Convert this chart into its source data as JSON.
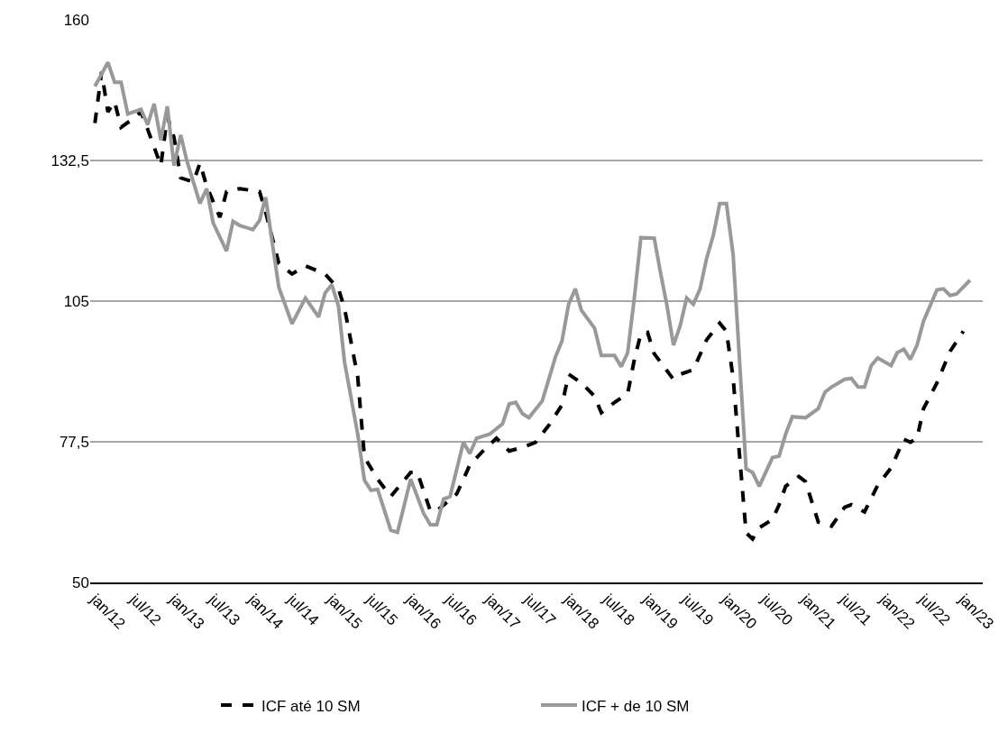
{
  "chart_data": {
    "type": "line",
    "xlim": [
      "2011-12-10",
      "2023-04-01"
    ],
    "ylim": [
      50,
      160
    ],
    "yticks": [
      50,
      {
        "value": 77.5,
        "label": "77,5"
      },
      105,
      {
        "value": 132.5,
        "label": "132,5"
      },
      160
    ],
    "xticks": [
      {
        "value": "2012-01-01",
        "label": "jan/12"
      },
      {
        "value": "2012-07-01",
        "label": "jul/12"
      },
      {
        "value": "2013-01-01",
        "label": "jan/13"
      },
      {
        "value": "2013-07-01",
        "label": "jul/13"
      },
      {
        "value": "2014-01-01",
        "label": "jan/14"
      },
      {
        "value": "2014-07-01",
        "label": "jul/14"
      },
      {
        "value": "2015-01-01",
        "label": "jan/15"
      },
      {
        "value": "2015-07-01",
        "label": "jul/15"
      },
      {
        "value": "2016-01-01",
        "label": "jan/16"
      },
      {
        "value": "2016-07-01",
        "label": "jul/16"
      },
      {
        "value": "2017-01-01",
        "label": "jan/17"
      },
      {
        "value": "2017-07-01",
        "label": "jul/17"
      },
      {
        "value": "2018-01-01",
        "label": "jan/18"
      },
      {
        "value": "2018-07-01",
        "label": "jul/18"
      },
      {
        "value": "2019-01-01",
        "label": "jan/19"
      },
      {
        "value": "2019-07-01",
        "label": "jul/19"
      },
      {
        "value": "2020-01-01",
        "label": "jan/20"
      },
      {
        "value": "2020-07-01",
        "label": "jul/20"
      },
      {
        "value": "2021-01-01",
        "label": "jan/21"
      },
      {
        "value": "2021-07-01",
        "label": "jul/21"
      },
      {
        "value": "2022-01-01",
        "label": "jan/22"
      },
      {
        "value": "2022-07-01",
        "label": "jul/22"
      },
      {
        "value": "2023-01-01",
        "label": "jan/23"
      }
    ],
    "grid": "y",
    "legend": "bottom",
    "marker": "none",
    "series": [
      {
        "name": "ICF até 10 SM",
        "color": "#000000",
        "line_style": "dashed",
        "x": [
          "2012-01",
          "2012-02",
          "2012-03",
          "2012-04",
          "2012-05",
          "2012-07",
          "2012-08",
          "2012-09",
          "2012-11",
          "2012-12",
          "2013-01",
          "2013-02",
          "2013-04",
          "2013-05",
          "2013-06",
          "2013-08",
          "2013-09",
          "2013-11",
          "2014-02",
          "2014-03",
          "2014-05",
          "2014-07",
          "2014-09",
          "2014-12",
          "2015-02",
          "2015-03",
          "2015-05",
          "2015-06",
          "2015-08",
          "2015-10",
          "2016-01",
          "2016-02",
          "2016-04",
          "2016-05",
          "2016-08",
          "2016-10",
          "2016-12",
          "2017-02",
          "2017-04",
          "2017-06",
          "2017-08",
          "2017-10",
          "2017-12",
          "2018-01",
          "2018-03",
          "2018-05",
          "2018-06",
          "2018-08",
          "2018-10",
          "2018-11",
          "2018-12",
          "2019-01",
          "2019-02",
          "2019-05",
          "2019-06",
          "2019-08",
          "2019-10",
          "2019-12",
          "2020-01",
          "2020-02",
          "2020-03",
          "2020-04",
          "2020-05",
          "2020-06",
          "2020-08",
          "2020-09",
          "2020-10",
          "2020-12",
          "2021-01",
          "2021-03",
          "2021-05",
          "2021-07",
          "2021-08",
          "2021-10",
          "2021-12",
          "2022-02",
          "2022-04",
          "2022-05",
          "2022-06",
          "2022-07",
          "2022-09",
          "2022-11",
          "2023-01"
        ],
        "values": [
          139.8,
          149.8,
          142.0,
          144.0,
          139.0,
          140.8,
          142.0,
          138.6,
          131.5,
          141.1,
          137.0,
          129.1,
          128.3,
          132.0,
          127.5,
          121.4,
          126.4,
          127.0,
          126.4,
          122.4,
          112.4,
          110.3,
          111.9,
          110.3,
          107.4,
          103.6,
          90.2,
          74.5,
          70.2,
          66.8,
          71.5,
          71.5,
          64.0,
          64.0,
          67.3,
          73.0,
          75.7,
          78.2,
          75.7,
          76.4,
          77.4,
          80.7,
          84.7,
          90.7,
          89.0,
          86.4,
          83.2,
          85.2,
          86.9,
          93.6,
          98.6,
          98.9,
          94.7,
          89.7,
          90.7,
          91.6,
          97.4,
          100.7,
          99.1,
          90.0,
          75.2,
          59.7,
          58.5,
          60.7,
          62.3,
          65.2,
          68.8,
          70.7,
          69.7,
          61.8,
          61.0,
          64.7,
          65.2,
          63.8,
          69.0,
          72.4,
          78.0,
          77.4,
          78.2,
          84.0,
          89.0,
          95.2,
          99.1
        ]
      },
      {
        "name": "ICF + de 10 SM",
        "color": "#999999",
        "line_style": "solid",
        "x": [
          "2012-01",
          "2012-03",
          "2012-04",
          "2012-05",
          "2012-06",
          "2012-08",
          "2012-09",
          "2012-10",
          "2012-11",
          "2012-12",
          "2013-01",
          "2013-02",
          "2013-03",
          "2013-05",
          "2013-06",
          "2013-07",
          "2013-09",
          "2013-10",
          "2013-11",
          "2014-01",
          "2014-02",
          "2014-03",
          "2014-05",
          "2014-07",
          "2014-09",
          "2014-11",
          "2014-12",
          "2015-01",
          "2015-02",
          "2015-03",
          "2015-05",
          "2015-06",
          "2015-07",
          "2015-08",
          "2015-10",
          "2015-11",
          "2016-01",
          "2016-03",
          "2016-04",
          "2016-05",
          "2016-06",
          "2016-07",
          "2016-09",
          "2016-10",
          "2016-11",
          "2017-01",
          "2017-03",
          "2017-04",
          "2017-05",
          "2017-06",
          "2017-07",
          "2017-09",
          "2017-11",
          "2017-12",
          "2018-01",
          "2018-02",
          "2018-03",
          "2018-05",
          "2018-06",
          "2018-08",
          "2018-09",
          "2018-10",
          "2018-11",
          "2018-12",
          "2019-02",
          "2019-03",
          "2019-04",
          "2019-05",
          "2019-06",
          "2019-07",
          "2019-08",
          "2019-09",
          "2019-10",
          "2019-11",
          "2019-12",
          "2020-01",
          "2020-02",
          "2020-04",
          "2020-05",
          "2020-06",
          "2020-08",
          "2020-09",
          "2020-10",
          "2020-11",
          "2021-01",
          "2021-03",
          "2021-04",
          "2021-05",
          "2021-07",
          "2021-08",
          "2021-09",
          "2021-10",
          "2021-11",
          "2021-12",
          "2022-02",
          "2022-03",
          "2022-04",
          "2022-05",
          "2022-06",
          "2022-07",
          "2022-09",
          "2022-10",
          "2022-11",
          "2022-12",
          "2023-02"
        ],
        "values": [
          147.0,
          151.7,
          147.8,
          147.8,
          141.6,
          142.5,
          139.5,
          143.6,
          136.5,
          143.1,
          131.5,
          137.5,
          132.5,
          124.1,
          127.0,
          120.3,
          114.8,
          120.6,
          119.8,
          119.0,
          120.8,
          125.3,
          107.7,
          100.6,
          105.6,
          101.9,
          106.6,
          108.2,
          104.0,
          93.1,
          79.0,
          70.0,
          68.0,
          68.2,
          60.2,
          59.8,
          70.2,
          63.5,
          61.3,
          61.3,
          66.3,
          66.8,
          77.4,
          75.2,
          78.2,
          79.0,
          81.0,
          84.9,
          85.2,
          83.0,
          82.2,
          85.5,
          94.1,
          97.2,
          104.4,
          107.4,
          103.2,
          99.7,
          94.4,
          94.4,
          92.2,
          94.9,
          105.7,
          117.4,
          117.3,
          110.8,
          104.1,
          96.4,
          100.2,
          105.6,
          104.4,
          107.4,
          113.3,
          117.8,
          124.1,
          124.1,
          114.1,
          72.2,
          71.5,
          68.8,
          74.4,
          74.7,
          79.0,
          82.4,
          82.2,
          84.0,
          87.2,
          88.2,
          89.7,
          89.9,
          88.2,
          88.2,
          92.4,
          93.9,
          92.4,
          94.9,
          95.6,
          93.6,
          96.4,
          101.1,
          107.2,
          107.4,
          106.1,
          106.4,
          109.1
        ]
      }
    ]
  }
}
